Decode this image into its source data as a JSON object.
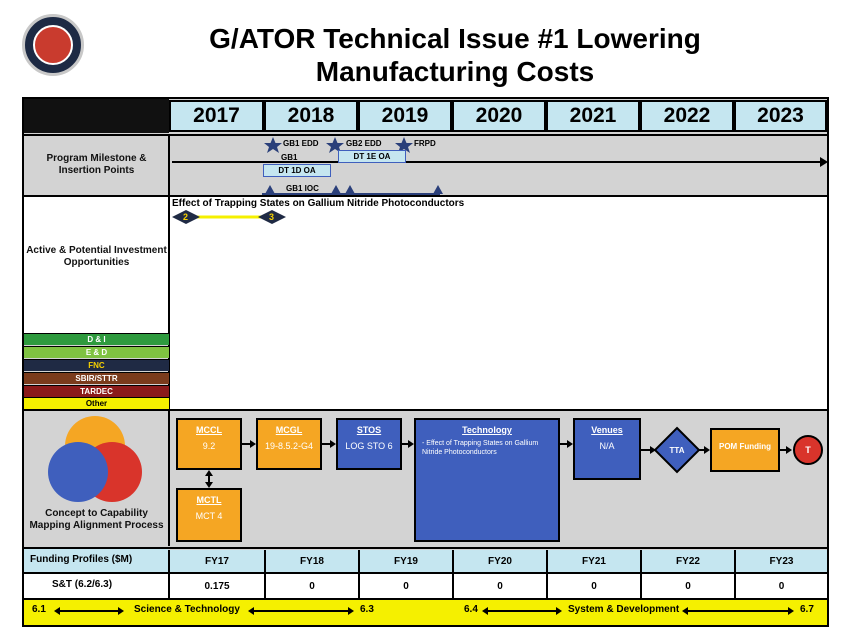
{
  "title_line1": "G/ATOR Technical Issue #1 Lowering",
  "title_line2": "Manufacturing Costs",
  "years": [
    "2017",
    "2018",
    "2019",
    "2020",
    "2021",
    "2022",
    "2023"
  ],
  "rows": {
    "milestone": "Program Milestone & Insertion Points",
    "investment": "Active & Potential Investment Opportunities",
    "concept": "Concept to Capability Mapping Alignment Process"
  },
  "milestones": {
    "gb1_edd": "GB1 EDD",
    "gb2_edd": "GB2 EDD",
    "frpd": "FRPD",
    "gb1": "GB1",
    "dt1d": "DT 1D OA",
    "dt1e": "DT 1E OA",
    "gb1_ioc": "GB1 IOC"
  },
  "effort": {
    "title": "Effect of Trapping States on Gallium Nitride Photoconductors",
    "start": "2",
    "end": "3"
  },
  "categories": [
    {
      "label": "D & I",
      "color": "#2e9a3e",
      "text_color": "#ffffff"
    },
    {
      "label": "E & D",
      "color": "#7fc241",
      "text_color": "#ffffff"
    },
    {
      "label": "FNC",
      "color": "#1f2a44",
      "text_color": "#f5d000"
    },
    {
      "label": "SBIR/STTR",
      "color": "#7a3b1c",
      "text_color": "#ffffff"
    },
    {
      "label": "TARDEC",
      "color": "#8b1a1a",
      "text_color": "#ffffff"
    },
    {
      "label": "Other",
      "color": "#f5f000",
      "text_color": "#000000"
    }
  ],
  "concept": {
    "mccl": {
      "h": "MCCL",
      "v": "9.2"
    },
    "mctl": {
      "h": "MCTL",
      "v": "MCT 4"
    },
    "mcgl": {
      "h": "MCGL",
      "v": "19-8.5.2-G4"
    },
    "stos": {
      "h": "STOS",
      "v": "LOG STO 6"
    },
    "technology": {
      "h": "Technology",
      "v": "- Effect of Trapping States on Gallium Nitride Photoconductors"
    },
    "venues": {
      "h": "Venues",
      "v": "N/A"
    },
    "tta": "TTA",
    "pom": "POM Funding",
    "t": "T"
  },
  "funding": {
    "label": "Funding Profiles ($M)",
    "fy": [
      "FY17",
      "FY18",
      "FY19",
      "FY20",
      "FY21",
      "FY22",
      "FY23"
    ],
    "st_label": "S&T (6.2/6.3)",
    "st": [
      "0.175",
      "0",
      "0",
      "0",
      "0",
      "0",
      "0"
    ]
  },
  "bottom_bar": {
    "a": "6.1",
    "b": "Science & Technology",
    "c": "6.3",
    "d": "6.4",
    "e": "System & Development",
    "f": "6.7"
  }
}
